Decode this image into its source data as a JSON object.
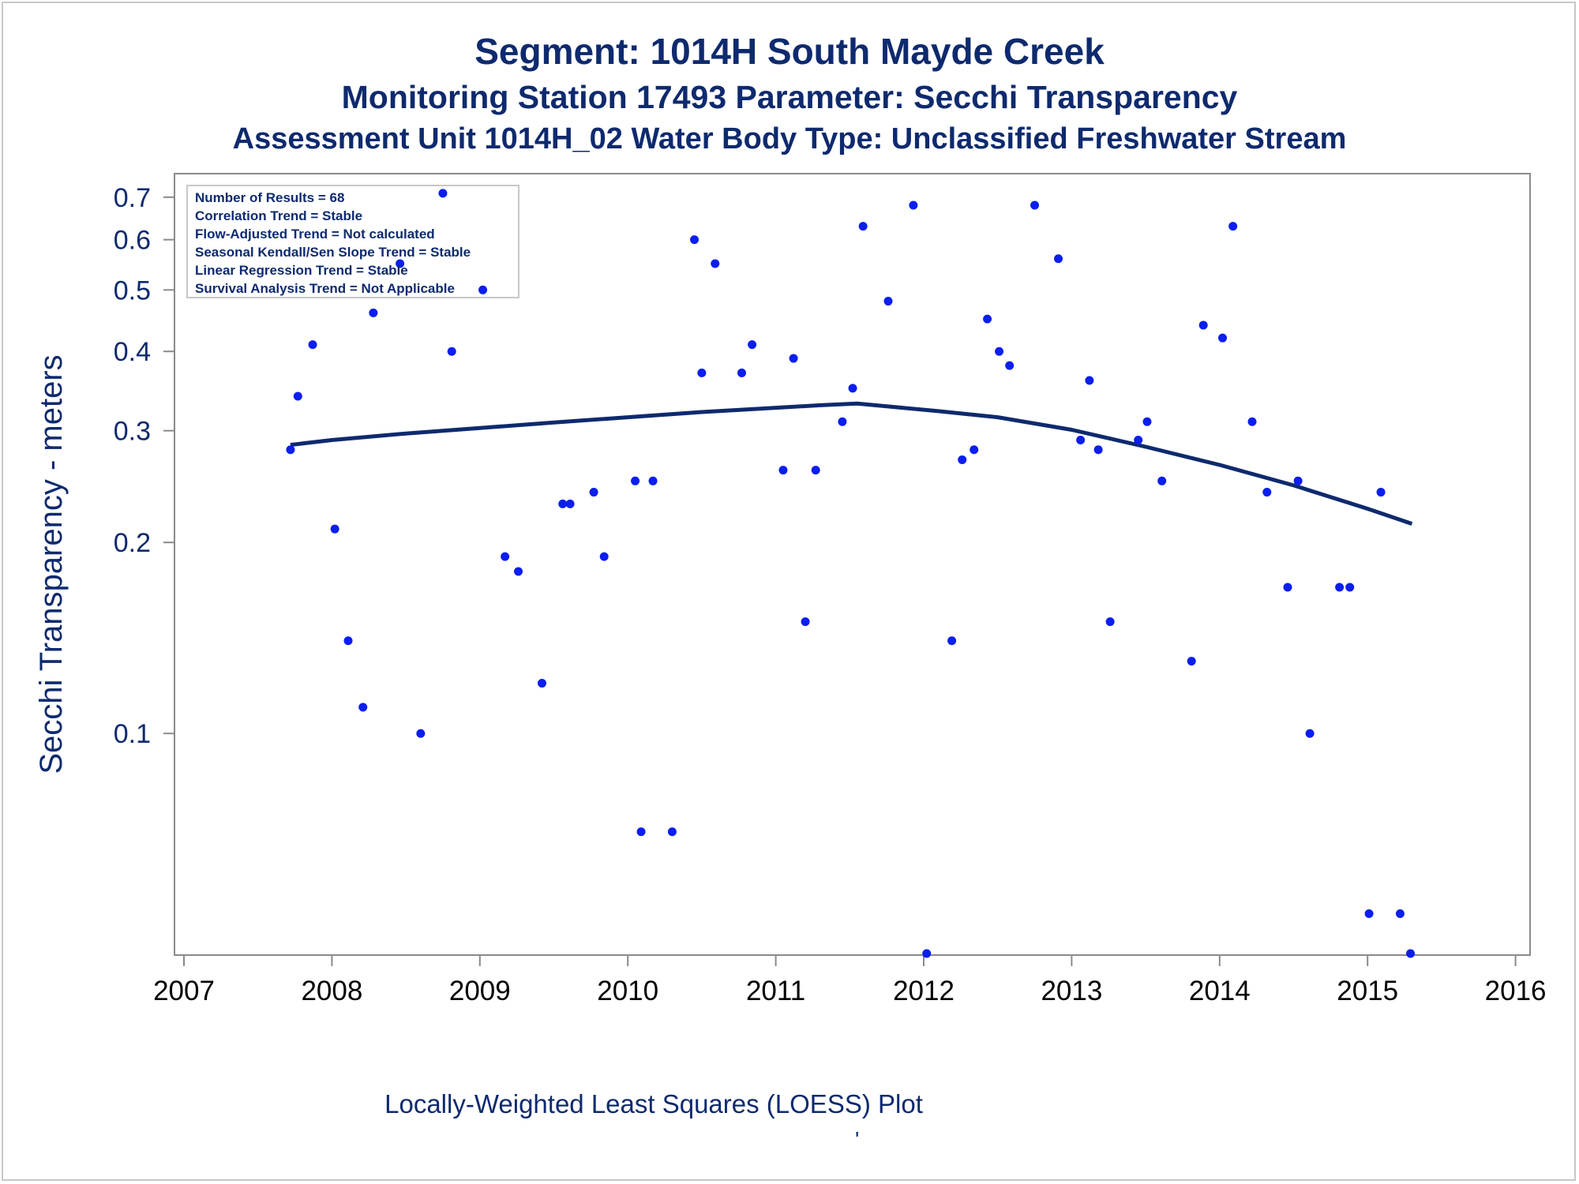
{
  "titles": {
    "line1": "Segment: 1014H  South Mayde Creek",
    "line2": "Monitoring Station 17493 Parameter: Secchi Transparency",
    "line3": "Assessment Unit 1014H_02   Water Body Type: Unclassified Freshwater Stream"
  },
  "caption": "Locally-Weighted Least Squares (LOESS) Plot",
  "caption_mark": "'",
  "colors": {
    "text": "#0e2a6e",
    "points": "#0a1ef0",
    "loess": "#0e2a6e",
    "axis": "#8a8a8a"
  },
  "chart_data": {
    "type": "scatter",
    "ylabel": "Secchi Transparency - meters",
    "xlabel": "",
    "y_scale": "log",
    "ylim": [
      0.045,
      0.72
    ],
    "xlim": [
      2007,
      2016
    ],
    "x_ticks": [
      "2007",
      "2008",
      "2009",
      "2010",
      "2011",
      "2012",
      "2013",
      "2014",
      "2015",
      "2016"
    ],
    "y_ticks": [
      "0.1",
      "0.2",
      "0.3",
      "0.4",
      "0.5",
      "0.6",
      "0.7"
    ],
    "grid": false,
    "legend_stats": [
      "Number of Results = 68",
      "Correlation Trend = Stable",
      "Flow-Adjusted Trend = Not calculated",
      "Seasonal Kendall/Sen Slope Trend = Stable",
      "Linear Regression Trend = Stable",
      "Survival Analysis Trend = Not Applicable"
    ],
    "legend_placement": "top-left",
    "points": [
      {
        "x": 2007.72,
        "y": 0.28
      },
      {
        "x": 2007.77,
        "y": 0.34
      },
      {
        "x": 2007.87,
        "y": 0.41
      },
      {
        "x": 2008.02,
        "y": 0.21
      },
      {
        "x": 2008.11,
        "y": 0.14
      },
      {
        "x": 2008.21,
        "y": 0.11
      },
      {
        "x": 2008.28,
        "y": 0.46
      },
      {
        "x": 2008.46,
        "y": 0.55
      },
      {
        "x": 2008.6,
        "y": 0.1
      },
      {
        "x": 2008.75,
        "y": 0.71
      },
      {
        "x": 2008.81,
        "y": 0.4
      },
      {
        "x": 2009.02,
        "y": 0.5
      },
      {
        "x": 2009.17,
        "y": 0.19
      },
      {
        "x": 2009.26,
        "y": 0.18
      },
      {
        "x": 2009.42,
        "y": 0.12
      },
      {
        "x": 2009.56,
        "y": 0.23
      },
      {
        "x": 2009.61,
        "y": 0.23
      },
      {
        "x": 2009.77,
        "y": 0.24
      },
      {
        "x": 2009.84,
        "y": 0.19
      },
      {
        "x": 2010.05,
        "y": 0.25
      },
      {
        "x": 2010.09,
        "y": 0.07
      },
      {
        "x": 2010.17,
        "y": 0.25
      },
      {
        "x": 2010.3,
        "y": 0.07
      },
      {
        "x": 2010.45,
        "y": 0.6
      },
      {
        "x": 2010.5,
        "y": 0.37
      },
      {
        "x": 2010.59,
        "y": 0.55
      },
      {
        "x": 2010.77,
        "y": 0.37
      },
      {
        "x": 2010.84,
        "y": 0.41
      },
      {
        "x": 2011.05,
        "y": 0.26
      },
      {
        "x": 2011.12,
        "y": 0.39
      },
      {
        "x": 2011.2,
        "y": 0.15
      },
      {
        "x": 2011.27,
        "y": 0.26
      },
      {
        "x": 2011.45,
        "y": 0.31
      },
      {
        "x": 2011.52,
        "y": 0.35
      },
      {
        "x": 2011.59,
        "y": 0.63
      },
      {
        "x": 2011.76,
        "y": 0.48
      },
      {
        "x": 2011.93,
        "y": 0.68
      },
      {
        "x": 2012.02,
        "y": 0.045
      },
      {
        "x": 2012.19,
        "y": 0.14
      },
      {
        "x": 2012.26,
        "y": 0.27
      },
      {
        "x": 2012.34,
        "y": 0.28
      },
      {
        "x": 2012.43,
        "y": 0.45
      },
      {
        "x": 2012.51,
        "y": 0.4
      },
      {
        "x": 2012.58,
        "y": 0.38
      },
      {
        "x": 2012.75,
        "y": 0.68
      },
      {
        "x": 2012.91,
        "y": 0.56
      },
      {
        "x": 2013.06,
        "y": 0.29
      },
      {
        "x": 2013.12,
        "y": 0.36
      },
      {
        "x": 2013.18,
        "y": 0.28
      },
      {
        "x": 2013.26,
        "y": 0.15
      },
      {
        "x": 2013.45,
        "y": 0.29
      },
      {
        "x": 2013.51,
        "y": 0.31
      },
      {
        "x": 2013.61,
        "y": 0.25
      },
      {
        "x": 2013.81,
        "y": 0.13
      },
      {
        "x": 2013.89,
        "y": 0.44
      },
      {
        "x": 2014.02,
        "y": 0.42
      },
      {
        "x": 2014.09,
        "y": 0.63
      },
      {
        "x": 2014.22,
        "y": 0.31
      },
      {
        "x": 2014.32,
        "y": 0.24
      },
      {
        "x": 2014.46,
        "y": 0.17
      },
      {
        "x": 2014.53,
        "y": 0.25
      },
      {
        "x": 2014.61,
        "y": 0.1
      },
      {
        "x": 2014.81,
        "y": 0.17
      },
      {
        "x": 2014.88,
        "y": 0.17
      },
      {
        "x": 2015.01,
        "y": 0.052
      },
      {
        "x": 2015.09,
        "y": 0.24
      },
      {
        "x": 2015.22,
        "y": 0.052
      },
      {
        "x": 2015.29,
        "y": 0.045
      }
    ],
    "loess": {
      "x": [
        2007.72,
        2008.0,
        2008.5,
        2009.0,
        2009.5,
        2010.0,
        2010.5,
        2011.0,
        2011.3,
        2011.55,
        2011.8,
        2012.1,
        2012.5,
        2013.0,
        2013.5,
        2014.0,
        2014.5,
        2015.0,
        2015.3
      ],
      "y": [
        0.285,
        0.29,
        0.297,
        0.303,
        0.309,
        0.315,
        0.321,
        0.326,
        0.329,
        0.331,
        0.327,
        0.322,
        0.315,
        0.301,
        0.283,
        0.265,
        0.246,
        0.226,
        0.214
      ]
    }
  }
}
